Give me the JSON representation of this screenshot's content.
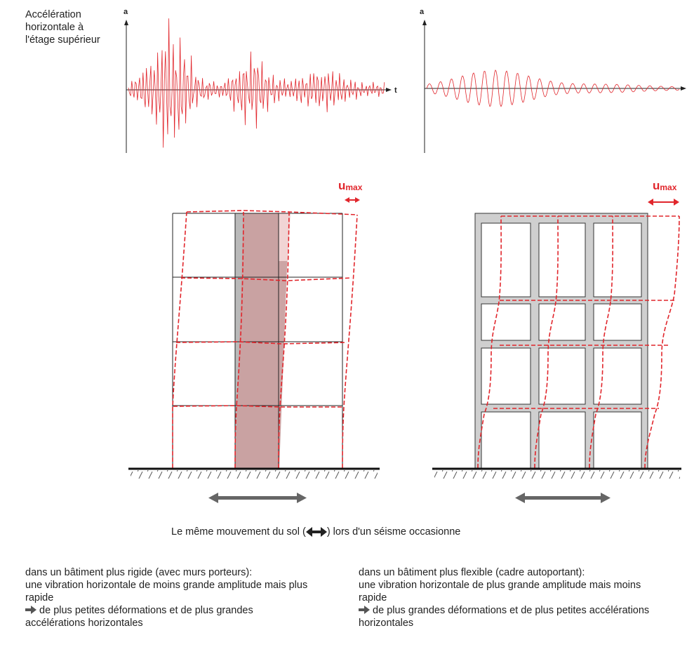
{
  "row_label": "Accélération horizontale à l'étage supérieur",
  "axis": {
    "a_left": "a",
    "t_left": "t",
    "a_right": "a"
  },
  "umax": {
    "letter": "u",
    "subscript": "max"
  },
  "caption": {
    "before": "Le même mouvement du sol (",
    "after": ") lors d'un séisme occasionne"
  },
  "left_text": {
    "line1": "dans un bâtiment plus rigide (avec murs porteurs):",
    "line2": "une vibration horizontale de moins grande amplitude mais plus rapide",
    "line3": "de plus petites déformations et de plus grandes accélérations horizontales"
  },
  "right_text": {
    "line1": "dans un bâtiment plus flexible (cadre autoportant):",
    "line2": "une vibration horizontale de plus grande amplitude mais moins rapide",
    "line3": "de plus grandes déformations et de plus petites accélérations horizontales"
  },
  "colors": {
    "red": "#e1262c",
    "frame_gray": "#cfcfcf",
    "wall_gray": "#b9b9b9",
    "wall_red": "#c9a0a0",
    "arrow_gray": "#666666"
  }
}
